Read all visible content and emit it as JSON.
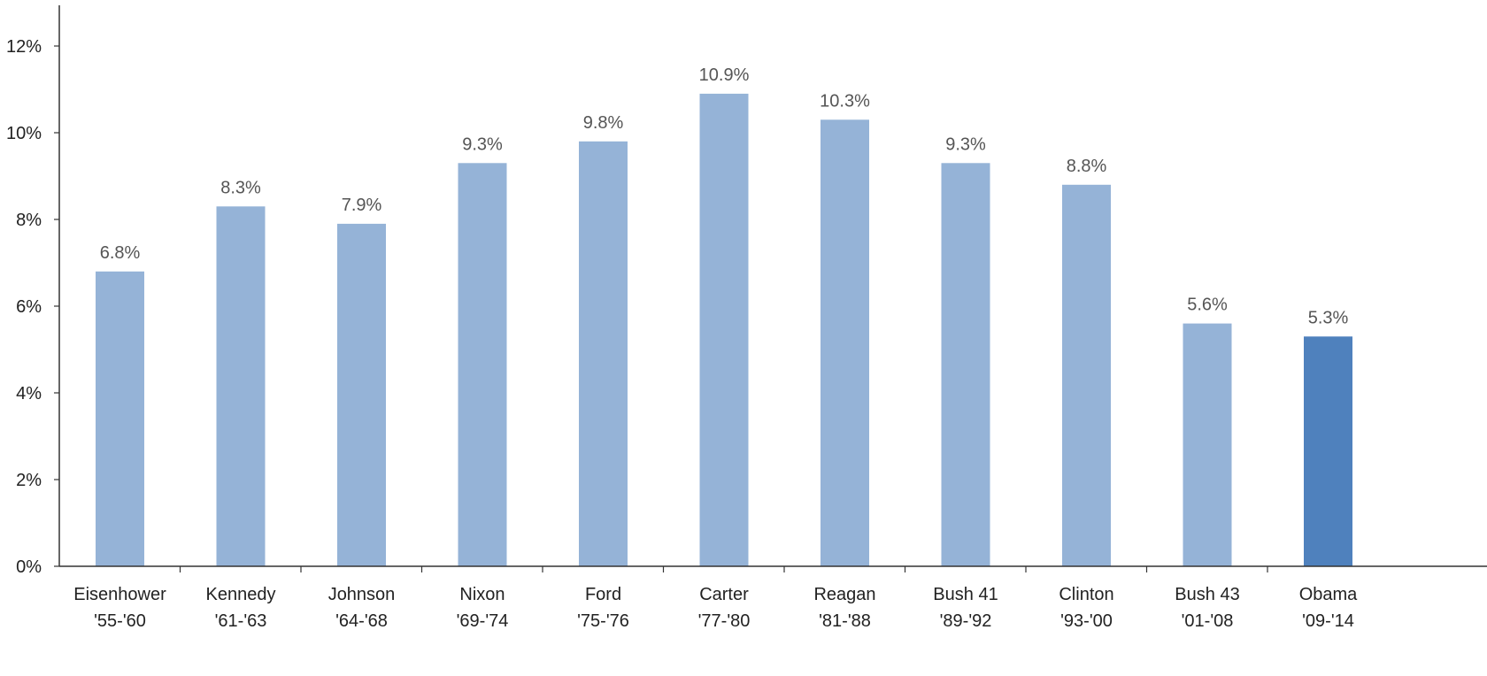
{
  "chart_data": {
    "type": "bar",
    "title": "",
    "xlabel": "",
    "ylabel": "",
    "categories": [
      [
        "Eisenhower",
        "'55-'60"
      ],
      [
        "Kennedy",
        "'61-'63"
      ],
      [
        "Johnson",
        "'64-'68"
      ],
      [
        "Nixon",
        "'69-'74"
      ],
      [
        "Ford",
        "'75-'76"
      ],
      [
        "Carter",
        "'77-'80"
      ],
      [
        "Reagan",
        "'81-'88"
      ],
      [
        "Bush 41",
        "'89-'92"
      ],
      [
        "Clinton",
        "'93-'00"
      ],
      [
        "Bush 43",
        "'01-'08"
      ],
      [
        "Obama",
        "'09-'14"
      ]
    ],
    "values": [
      6.8,
      8.3,
      7.9,
      9.3,
      9.8,
      10.9,
      10.3,
      9.3,
      8.8,
      5.6,
      5.3
    ],
    "data_labels": [
      "6.8%",
      "8.3%",
      "7.9%",
      "9.3%",
      "9.8%",
      "10.9%",
      "10.3%",
      "9.3%",
      "8.8%",
      "5.6%",
      "5.3%"
    ],
    "ylim": [
      0,
      12
    ],
    "yticks": [
      0,
      2,
      4,
      6,
      8,
      10,
      12
    ],
    "ytick_labels": [
      "0%",
      "2%",
      "4%",
      "6%",
      "8%",
      "10%",
      "12%"
    ],
    "grid": false,
    "legend": "none",
    "colors": {
      "bar": "#95b3d7",
      "highlight_bar": "#4f81bd",
      "highlight_index": 10
    }
  }
}
